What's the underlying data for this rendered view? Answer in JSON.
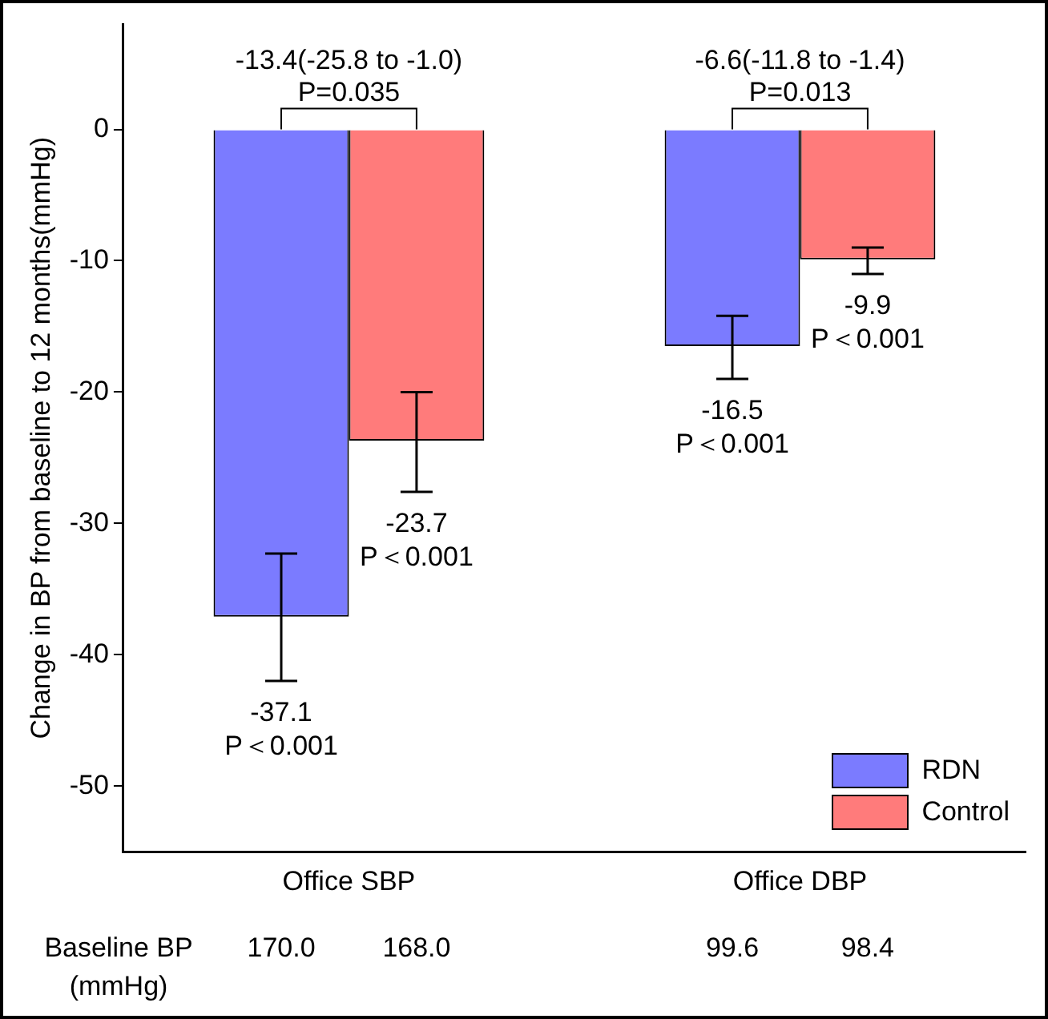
{
  "chart_data": {
    "type": "bar",
    "ylabel": "Change in BP from baseline to 12 months(mmHg)",
    "categories": [
      "Office SBP",
      "Office DBP"
    ],
    "series": [
      {
        "name": "RDN",
        "color": "#7b7bff",
        "values": [
          -37.1,
          -16.5
        ],
        "errors": [
          [
            -42.0,
            -32.3
          ],
          [
            -19.0,
            -14.2
          ]
        ],
        "value_labels": [
          "-37.1\nP＜0.001",
          "-16.5\nP＜0.001"
        ]
      },
      {
        "name": "Control",
        "color": "#ff7b7b",
        "values": [
          -23.7,
          -9.9
        ],
        "errors": [
          [
            -27.6,
            -20.0
          ],
          [
            -11.0,
            -9.0
          ]
        ],
        "value_labels": [
          "-23.7\nP＜0.001",
          "-9.9\nP＜0.001"
        ]
      }
    ],
    "ylim": [
      -55,
      8
    ],
    "yticks": [
      -50,
      -40,
      -30,
      -20,
      -10,
      0
    ],
    "grid": false,
    "legend": "bottom right",
    "annotations": [
      {
        "text": "-13.4(-25.8 to -1.0)\nP=0.035",
        "x": "Office SBP",
        "y": 0
      },
      {
        "text": "-6.6(-11.8 to -1.4)\nP=0.013",
        "x": "Office DBP",
        "y": 0
      },
      "Baseline BP\n(mmHg)",
      "170.0",
      "168.0",
      "99.6",
      "98.4"
    ]
  }
}
